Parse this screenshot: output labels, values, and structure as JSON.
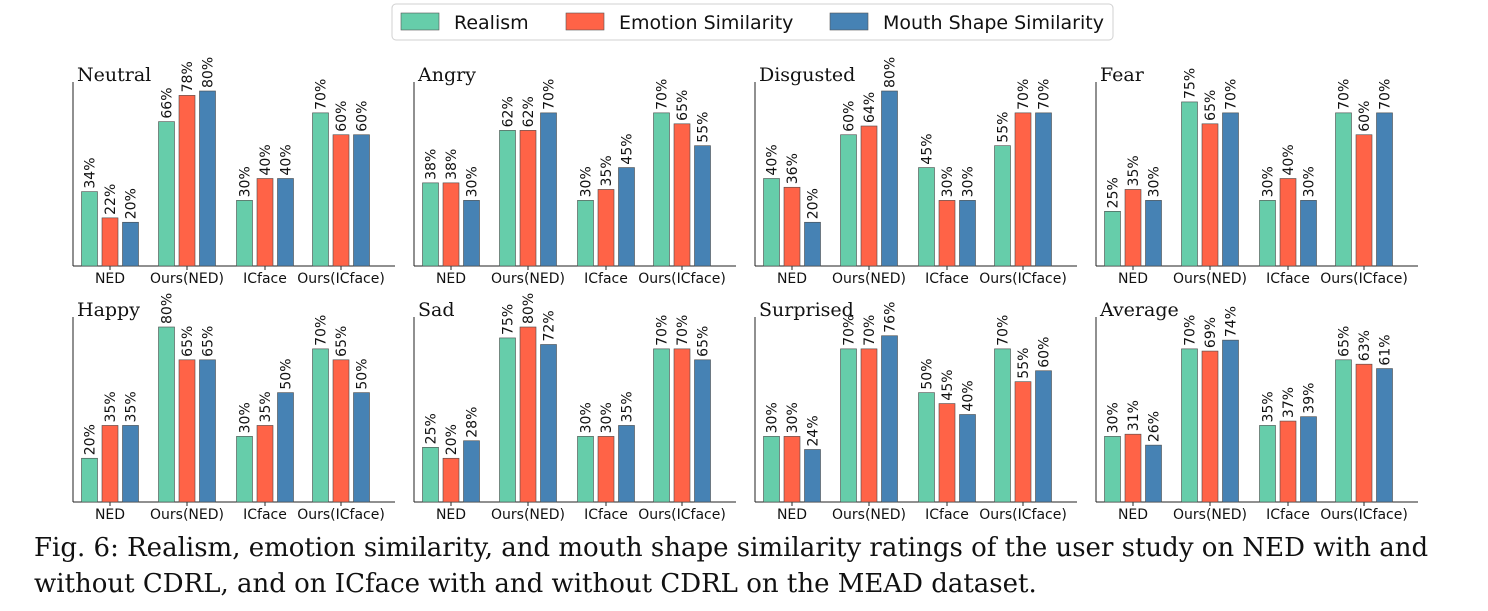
{
  "caption": {
    "label": "Fig. 6:",
    "text": "Realism, emotion similarity, and mouth shape similarity ratings of the user study on NED with and without CDRL, and on ICface with and without CDRL on the MEAD dataset."
  },
  "legend": [
    {
      "name": "Realism",
      "color": "#66cdaa"
    },
    {
      "name": "Emotion Similarity",
      "color": "#ff6347"
    },
    {
      "name": "Mouth Shape Similarity",
      "color": "#4682b4"
    }
  ],
  "chart_data": [
    {
      "type": "bar",
      "title": "Neutral",
      "categories": [
        "NED",
        "Ours(NED)",
        "ICface",
        "Ours(ICface)"
      ],
      "ylim": [
        0,
        80
      ],
      "series": [
        {
          "name": "Realism",
          "values": [
            34,
            66,
            30,
            70
          ]
        },
        {
          "name": "Emotion Similarity",
          "values": [
            22,
            78,
            40,
            60
          ]
        },
        {
          "name": "Mouth Shape Similarity",
          "values": [
            20,
            80,
            40,
            60
          ]
        }
      ]
    },
    {
      "type": "bar",
      "title": "Angry",
      "categories": [
        "NED",
        "Ours(NED)",
        "ICface",
        "Ours(ICface)"
      ],
      "ylim": [
        0,
        80
      ],
      "series": [
        {
          "name": "Realism",
          "values": [
            38,
            62,
            30,
            70
          ]
        },
        {
          "name": "Emotion Similarity",
          "values": [
            38,
            62,
            35,
            65
          ]
        },
        {
          "name": "Mouth Shape Similarity",
          "values": [
            30,
            70,
            45,
            55
          ]
        }
      ]
    },
    {
      "type": "bar",
      "title": "Disgusted",
      "categories": [
        "NED",
        "Ours(NED)",
        "ICface",
        "Ours(ICface)"
      ],
      "ylim": [
        0,
        80
      ],
      "series": [
        {
          "name": "Realism",
          "values": [
            40,
            60,
            45,
            55
          ]
        },
        {
          "name": "Emotion Similarity",
          "values": [
            36,
            64,
            30,
            70
          ]
        },
        {
          "name": "Mouth Shape Similarity",
          "values": [
            20,
            80,
            30,
            70
          ]
        }
      ]
    },
    {
      "type": "bar",
      "title": "Fear",
      "categories": [
        "NED",
        "Ours(NED)",
        "ICface",
        "Ours(ICface)"
      ],
      "ylim": [
        0,
        80
      ],
      "series": [
        {
          "name": "Realism",
          "values": [
            25,
            75,
            30,
            70
          ]
        },
        {
          "name": "Emotion Similarity",
          "values": [
            35,
            65,
            40,
            60
          ]
        },
        {
          "name": "Mouth Shape Similarity",
          "values": [
            30,
            70,
            30,
            70
          ]
        }
      ]
    },
    {
      "type": "bar",
      "title": "Happy",
      "categories": [
        "NED",
        "Ours(NED)",
        "ICface",
        "Ours(ICface)"
      ],
      "ylim": [
        0,
        80
      ],
      "series": [
        {
          "name": "Realism",
          "values": [
            20,
            80,
            30,
            70
          ]
        },
        {
          "name": "Emotion Similarity",
          "values": [
            35,
            65,
            35,
            65
          ]
        },
        {
          "name": "Mouth Shape Similarity",
          "values": [
            35,
            65,
            50,
            50
          ]
        }
      ]
    },
    {
      "type": "bar",
      "title": "Sad",
      "categories": [
        "NED",
        "Ours(NED)",
        "ICface",
        "Ours(ICface)"
      ],
      "ylim": [
        0,
        80
      ],
      "series": [
        {
          "name": "Realism",
          "values": [
            25,
            75,
            30,
            70
          ]
        },
        {
          "name": "Emotion Similarity",
          "values": [
            20,
            80,
            30,
            70
          ]
        },
        {
          "name": "Mouth Shape Similarity",
          "values": [
            28,
            72,
            35,
            65
          ]
        }
      ]
    },
    {
      "type": "bar",
      "title": "Surprised",
      "categories": [
        "NED",
        "Ours(NED)",
        "ICface",
        "Ours(ICface)"
      ],
      "ylim": [
        0,
        80
      ],
      "series": [
        {
          "name": "Realism",
          "values": [
            30,
            70,
            50,
            70
          ]
        },
        {
          "name": "Emotion Similarity",
          "values": [
            30,
            70,
            45,
            55
          ]
        },
        {
          "name": "Mouth Shape Similarity",
          "values": [
            24,
            76,
            40,
            60
          ]
        }
      ]
    },
    {
      "type": "bar",
      "title": "Average",
      "categories": [
        "NED",
        "Ours(NED)",
        "ICface",
        "Ours(ICface)"
      ],
      "ylim": [
        0,
        80
      ],
      "series": [
        {
          "name": "Realism",
          "values": [
            30,
            70,
            35,
            65
          ]
        },
        {
          "name": "Emotion Similarity",
          "values": [
            31,
            69,
            37,
            63
          ]
        },
        {
          "name": "Mouth Shape Similarity",
          "values": [
            26,
            74,
            39,
            61
          ]
        }
      ]
    }
  ]
}
